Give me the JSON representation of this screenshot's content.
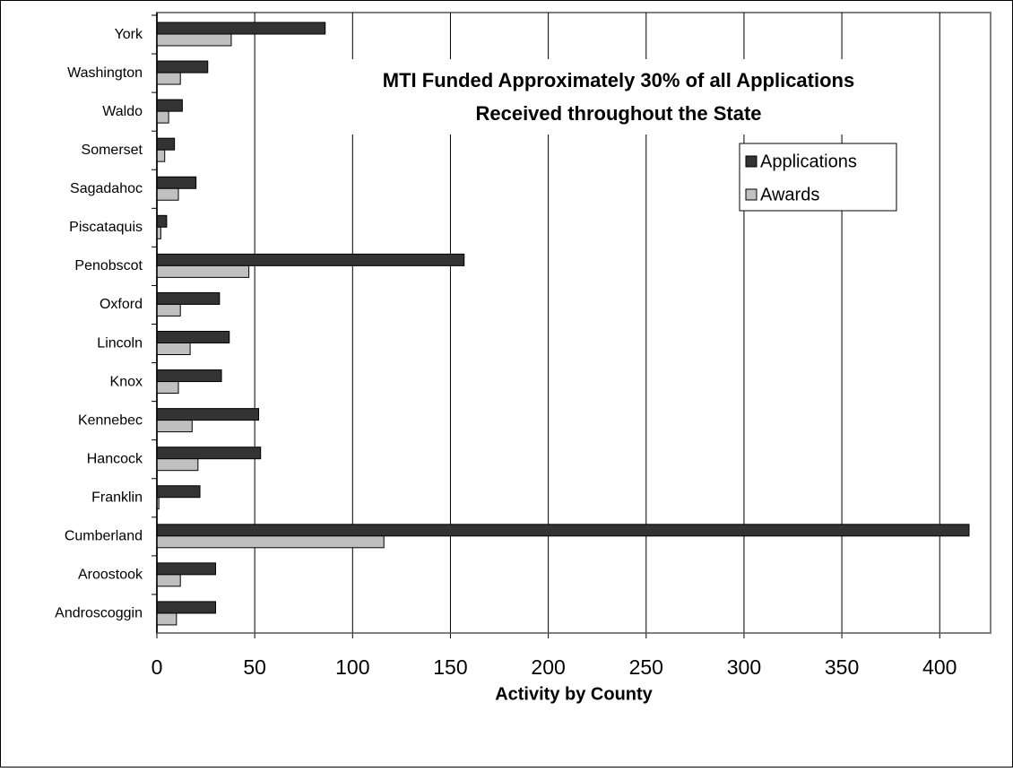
{
  "chart_data": {
    "type": "hbar",
    "title": [
      "MTI Funded Approximately 30% of all Applications",
      "Received throughout the State"
    ],
    "x_label": "Activity by County",
    "categories": [
      "Androscoggin",
      "Aroostook",
      "Cumberland",
      "Franklin",
      "Hancock",
      "Kennebec",
      "Knox",
      "Lincoln",
      "Oxford",
      "Penobscot",
      "Piscataquis",
      "Sagadahoc",
      "Somerset",
      "Waldo",
      "Washington",
      "York"
    ],
    "series": [
      {
        "name": "Applications",
        "color": "#333333",
        "values": [
          30,
          30,
          415,
          22,
          53,
          52,
          33,
          37,
          32,
          157,
          5,
          20,
          9,
          13,
          26,
          86
        ]
      },
      {
        "name": "Awards",
        "color": "#c0c0c0",
        "values": [
          10,
          12,
          116,
          1,
          21,
          18,
          11,
          17,
          12,
          47,
          2,
          11,
          4,
          6,
          12,
          38
        ]
      }
    ],
    "xlim": [
      0,
      426
    ],
    "xticks": [
      0,
      50,
      100,
      150,
      200,
      250,
      300,
      350,
      400
    ],
    "grid": true,
    "legend": "upper-right"
  }
}
